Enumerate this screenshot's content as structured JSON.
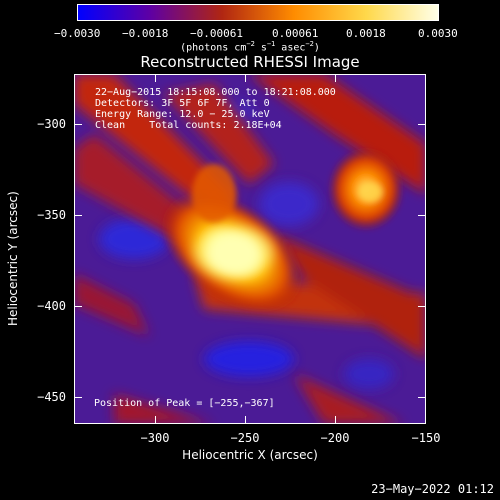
{
  "colorbar": {
    "ticks": [
      "−0.0030",
      "−0.0018",
      "−0.00061",
      "0.00061",
      "0.0018",
      "0.0030"
    ],
    "unit_main": "(photons cm",
    "unit_exp1": "−2",
    "unit_s": " s",
    "unit_exp2": "−1",
    "unit_asec": " asec",
    "unit_exp3": "−2",
    "unit_close": ")",
    "gradient_colors": [
      "#0000ff",
      "#5e00a4",
      "#b02612",
      "#ff8c00",
      "#ffd84a",
      "#ffffe8"
    ]
  },
  "title": "Reconstructed RHESSI Image",
  "info": {
    "line1": "22−Aug−2015 18:15:08.000 to 18:21:08.000",
    "line2": "Detectors: 3F 5F 6F 7F, Att 0",
    "line3": "Energy Range: 12.0 − 25.0 keV",
    "line4": "Clean    Total counts: 2.18E+04"
  },
  "peak": "Position of Peak = [−255,−367]",
  "axes": {
    "xlabel": "Heliocentric X (arcsec)",
    "ylabel": "Heliocentric Y (arcsec)",
    "x_ticks": [
      "−300",
      "−250",
      "−200",
      "−150"
    ],
    "y_ticks": [
      "−300",
      "−350",
      "−400",
      "−450"
    ],
    "xlim": [
      -345,
      -150
    ],
    "ylim": [
      -463,
      -270
    ]
  },
  "timestamp": "23−May−2022 01:12"
}
